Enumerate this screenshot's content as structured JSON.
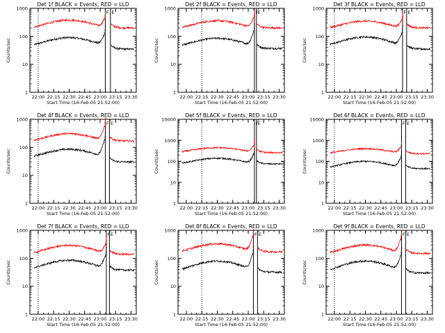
{
  "figure": {
    "x_label": "Start Time (16-Feb-05 21:52:00)",
    "y_label": "Counts/sec",
    "time_ticks": [
      "22:00",
      "22:15",
      "22:30",
      "22:45",
      "23:00",
      "23:15",
      "23:30"
    ],
    "marker_labels": [
      "F",
      "E"
    ],
    "colors": {
      "events": "#000000",
      "lld": "#ff0000",
      "axis": "#000000",
      "background": "#ffffff"
    }
  },
  "chart_data": [
    {
      "type": "line",
      "title": "Det 1f BLACK = Events, RED = LLD",
      "ylim": [
        1,
        1000
      ],
      "y_ticks": [
        "1",
        "10",
        "100",
        "1000"
      ],
      "series": [
        {
          "name": "Events",
          "color": "#000000",
          "base": 38,
          "hump": 90,
          "peak": 150,
          "post": 35
        },
        {
          "name": "LLD",
          "color": "#ff0000",
          "base": 165,
          "hump": 380,
          "peak": 500,
          "post": 200
        }
      ],
      "dotted_line_time": "22:00",
      "flare_start": "23:05",
      "flare_end": "23:10"
    },
    {
      "type": "line",
      "title": "Det 2f BLACK = Events, RED = LLD",
      "ylim": [
        1,
        1000
      ],
      "y_ticks": [
        "1",
        "10",
        "100",
        "1000"
      ],
      "series": [
        {
          "name": "Events",
          "color": "#000000",
          "base": 38,
          "hump": 85,
          "peak": 180,
          "post": 37
        },
        {
          "name": "LLD",
          "color": "#ff0000",
          "base": 165,
          "hump": 360,
          "peak": 550,
          "post": 200
        }
      ],
      "dotted_line_time": "22:15",
      "flare_start": "23:06",
      "flare_end": "23:08"
    },
    {
      "type": "line",
      "title": "Det 3f BLACK = Events, RED = LLD",
      "ylim": [
        1,
        1000
      ],
      "y_ticks": [
        "1",
        "10",
        "100",
        "1000"
      ],
      "series": [
        {
          "name": "Events",
          "color": "#000000",
          "base": 38,
          "hump": 95,
          "peak": 160,
          "post": 35
        },
        {
          "name": "LLD",
          "color": "#ff0000",
          "base": 165,
          "hump": 350,
          "peak": 480,
          "post": 200
        }
      ],
      "dotted_line_time": "22:00",
      "flare_start": "23:06",
      "flare_end": "23:10"
    },
    {
      "type": "line",
      "title": "Det 4f BLACK = Events, RED = LLD",
      "ylim": [
        1,
        1000
      ],
      "y_ticks": [
        "1",
        "10",
        "100",
        "1000"
      ],
      "series": [
        {
          "name": "Events",
          "color": "#000000",
          "base": 38,
          "hump": 85,
          "peak": 220,
          "post": 30
        },
        {
          "name": "LLD",
          "color": "#ff0000",
          "base": 140,
          "hump": 310,
          "peak": 700,
          "post": 170
        }
      ],
      "dotted_line_time": "22:00",
      "flare_start": "23:05",
      "flare_end": "23:09"
    },
    {
      "type": "line",
      "title": "Det 5f BLACK = Events, RED = LLD",
      "ylim": [
        1,
        10000
      ],
      "y_ticks": [
        "1",
        "10",
        "100",
        "1000",
        "10000"
      ],
      "series": [
        {
          "name": "Events",
          "color": "#000000",
          "base": 65,
          "hump": 140,
          "peak": 260,
          "post": 75
        },
        {
          "name": "LLD",
          "color": "#ff0000",
          "base": 240,
          "hump": 450,
          "peak": 650,
          "post": 260
        }
      ],
      "dotted_line_time": "22:15",
      "flare_start": "23:06",
      "flare_end": "23:08"
    },
    {
      "type": "line",
      "title": "Det 6f BLACK = Events, RED = LLD",
      "ylim": [
        1,
        10000
      ],
      "y_ticks": [
        "1",
        "10",
        "100",
        "1000",
        "10000"
      ],
      "series": [
        {
          "name": "Events",
          "color": "#000000",
          "base": 40,
          "hump": 100,
          "peak": 180,
          "post": 45
        },
        {
          "name": "LLD",
          "color": "#ff0000",
          "base": 210,
          "hump": 400,
          "peak": 560,
          "post": 230
        }
      ],
      "dotted_line_time": "22:00",
      "flare_start": "23:05",
      "flare_end": "23:09"
    },
    {
      "type": "line",
      "title": "Det 7f BLACK = Events, RED = LLD",
      "ylim": [
        1,
        1000
      ],
      "y_ticks": [
        "1",
        "10",
        "100",
        "1000"
      ],
      "series": [
        {
          "name": "Events",
          "color": "#000000",
          "base": 35,
          "hump": 85,
          "peak": 160,
          "post": 38
        },
        {
          "name": "LLD",
          "color": "#ff0000",
          "base": 120,
          "hump": 290,
          "peak": 380,
          "post": 140
        }
      ],
      "dotted_line_time": "22:00",
      "flare_start": "23:06",
      "flare_end": "23:09"
    },
    {
      "type": "line",
      "title": "Det 8f BLACK = Events, RED = LLD",
      "ylim": [
        1,
        1000
      ],
      "y_ticks": [
        "1",
        "10",
        "100",
        "1000"
      ],
      "series": [
        {
          "name": "Events",
          "color": "#000000",
          "base": 30,
          "hump": 80,
          "peak": 170,
          "post": 32
        },
        {
          "name": "LLD",
          "color": "#ff0000",
          "base": 140,
          "hump": 330,
          "peak": 700,
          "post": 170
        }
      ],
      "dotted_line_time": "22:15",
      "flare_start": "23:05",
      "flare_end": "23:09"
    },
    {
      "type": "line",
      "title": "Det 9f BLACK = Events, RED = LLD",
      "ylim": [
        1,
        1000
      ],
      "y_ticks": [
        "1",
        "10",
        "100",
        "1000"
      ],
      "series": [
        {
          "name": "Events",
          "color": "#000000",
          "base": 28,
          "hump": 80,
          "peak": 150,
          "post": 30
        },
        {
          "name": "LLD",
          "color": "#ff0000",
          "base": 120,
          "hump": 300,
          "peak": 600,
          "post": 150
        }
      ],
      "dotted_line_time": "22:00",
      "flare_start": "23:05",
      "flare_end": "23:09"
    }
  ]
}
